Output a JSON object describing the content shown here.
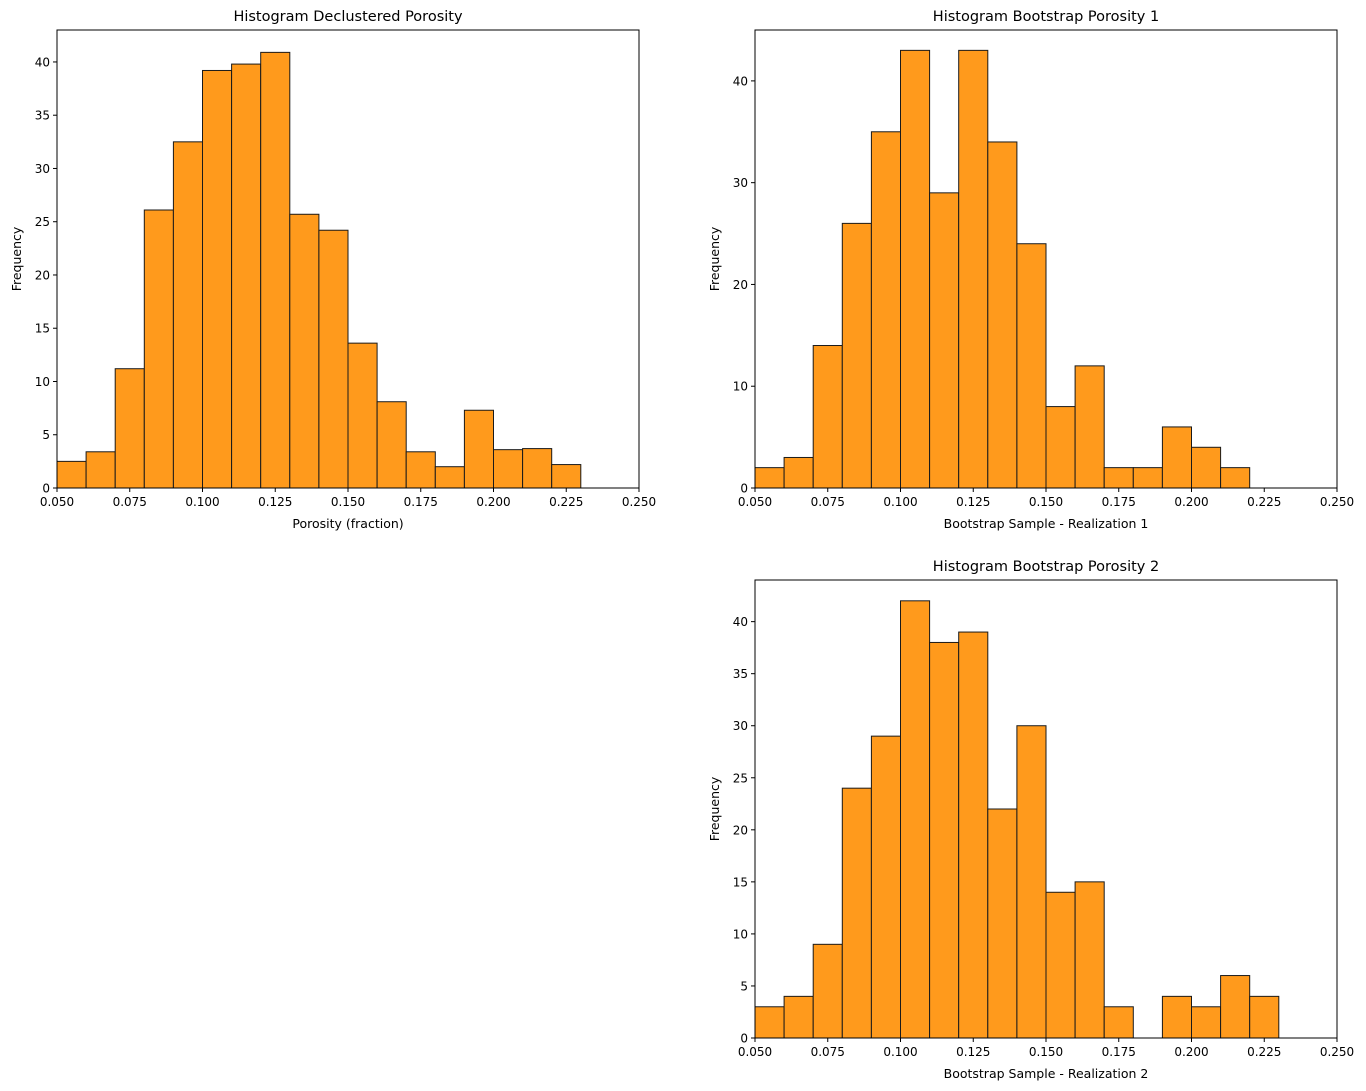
{
  "figure": {
    "bar_color": "#ff9a1c",
    "edge_color": "#1a1a1a"
  },
  "chart_data": [
    {
      "type": "bar",
      "title": "Histogram Declustered Porosity",
      "xlabel": "Porosity (fraction)",
      "ylabel": "Frequency",
      "xlim": [
        0.05,
        0.25
      ],
      "ylim": [
        0,
        43
      ],
      "xticks": [
        "0.050",
        "0.075",
        "0.100",
        "0.125",
        "0.150",
        "0.175",
        "0.200",
        "0.225",
        "0.250"
      ],
      "yticks": [
        0,
        5,
        10,
        15,
        20,
        25,
        30,
        35,
        40
      ],
      "bin_width": 0.01,
      "bin_starts": [
        0.05,
        0.06,
        0.07,
        0.08,
        0.09,
        0.1,
        0.11,
        0.12,
        0.13,
        0.14,
        0.15,
        0.16,
        0.17,
        0.18,
        0.19,
        0.2,
        0.21,
        0.22
      ],
      "values": [
        2.5,
        3.4,
        11.2,
        26.1,
        32.5,
        39.2,
        39.8,
        40.9,
        25.7,
        24.2,
        13.6,
        8.1,
        3.4,
        2.0,
        7.3,
        3.6,
        3.7,
        2.2
      ]
    },
    {
      "type": "bar",
      "title": "Histogram Bootstrap Porosity 1",
      "xlabel": "Bootstrap Sample - Realization 1",
      "ylabel": "Frequency",
      "xlim": [
        0.05,
        0.25
      ],
      "ylim": [
        0,
        45
      ],
      "xticks": [
        "0.050",
        "0.075",
        "0.100",
        "0.125",
        "0.150",
        "0.175",
        "0.200",
        "0.225",
        "0.250"
      ],
      "yticks": [
        0,
        10,
        20,
        30,
        40
      ],
      "bin_width": 0.01,
      "bin_starts": [
        0.05,
        0.06,
        0.07,
        0.08,
        0.09,
        0.1,
        0.11,
        0.12,
        0.13,
        0.14,
        0.15,
        0.16,
        0.17,
        0.18,
        0.19,
        0.2,
        0.21
      ],
      "values": [
        2,
        3,
        14,
        26,
        35,
        43,
        29,
        43,
        34,
        24,
        8,
        12,
        2,
        2,
        6,
        4,
        2
      ]
    },
    {
      "type": "bar",
      "title": "Histogram Bootstrap Porosity 2",
      "xlabel": "Bootstrap Sample - Realization 2",
      "ylabel": "Frequency",
      "xlim": [
        0.05,
        0.25
      ],
      "ylim": [
        0,
        44
      ],
      "xticks": [
        "0.050",
        "0.075",
        "0.100",
        "0.125",
        "0.150",
        "0.175",
        "0.200",
        "0.225",
        "0.250"
      ],
      "yticks": [
        0,
        5,
        10,
        15,
        20,
        25,
        30,
        35,
        40
      ],
      "bin_width": 0.01,
      "bin_starts": [
        0.05,
        0.06,
        0.07,
        0.08,
        0.09,
        0.1,
        0.11,
        0.12,
        0.13,
        0.14,
        0.15,
        0.16,
        0.17,
        0.19,
        0.2,
        0.21,
        0.22
      ],
      "values": [
        3,
        4,
        9,
        24,
        29,
        42,
        38,
        39,
        22,
        30,
        14,
        15,
        3,
        4,
        3,
        6,
        4
      ]
    }
  ]
}
